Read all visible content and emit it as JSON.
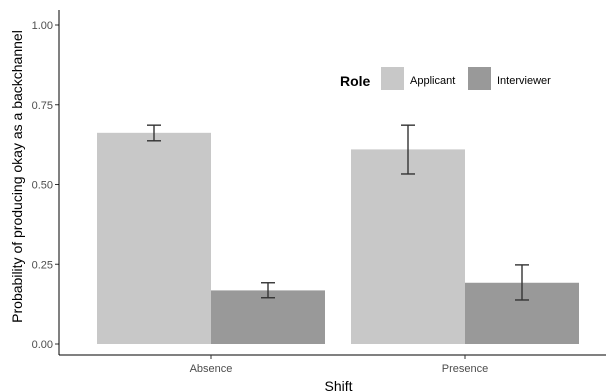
{
  "chart_data": {
    "type": "bar",
    "categories": [
      "Absence",
      "Presence"
    ],
    "series": [
      {
        "name": "Applicant",
        "color": "#c8c8c8",
        "values": [
          0.662,
          0.61
        ],
        "err_low": [
          0.637,
          0.533
        ],
        "err_high": [
          0.686,
          0.686
        ]
      },
      {
        "name": "Interviewer",
        "color": "#999999",
        "values": [
          0.168,
          0.192
        ],
        "err_low": [
          0.145,
          0.138
        ],
        "err_high": [
          0.192,
          0.248
        ]
      }
    ],
    "title": "",
    "xlabel": "Shift",
    "ylabel": "Probability of producing okay as a backchannel",
    "ylim": [
      0,
      1
    ],
    "yticks": [
      "0.00",
      "0.25",
      "0.50",
      "0.75",
      "1.00"
    ],
    "grid": false,
    "legend": {
      "title": "Role",
      "position": "top-right-inside"
    }
  }
}
